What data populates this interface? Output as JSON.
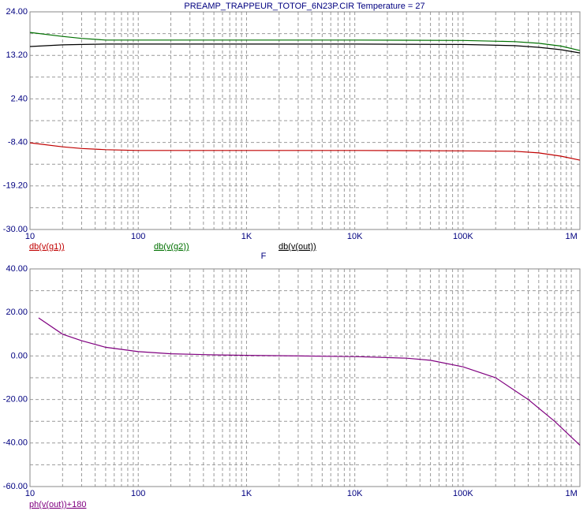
{
  "chart_data": [
    {
      "type": "line",
      "title": "PREAMP_TRAPPEUR_TOTOF_6N23P.CIR Temperature = 27",
      "xlabel": "F",
      "xscale": "log",
      "grid": true,
      "x": [
        10,
        20,
        30,
        50,
        100,
        1000,
        10000,
        100000,
        300000,
        500000,
        800000,
        1200000
      ],
      "series": [
        {
          "name": "db(v(g1))",
          "color": "#c00000",
          "values": [
            -8.5,
            -9.5,
            -9.9,
            -10.2,
            -10.4,
            -10.4,
            -10.4,
            -10.5,
            -10.6,
            -11.0,
            -11.8,
            -12.8
          ]
        },
        {
          "name": "db(v(g2))",
          "color": "#007000",
          "values": [
            18.9,
            17.9,
            17.4,
            17.0,
            17.0,
            17.0,
            17.0,
            16.9,
            16.6,
            16.2,
            15.5,
            14.4
          ]
        },
        {
          "name": "db(v(out))",
          "color": "#000000",
          "values": [
            15.4,
            15.8,
            15.9,
            16.0,
            16.0,
            16.0,
            16.0,
            15.9,
            15.6,
            15.2,
            14.6,
            13.8
          ]
        }
      ],
      "xlim": [
        10,
        1200000
      ],
      "xticks": [
        10,
        100,
        {
          "value": 1000,
          "label": "1K"
        },
        {
          "value": 10000,
          "label": "10K"
        },
        {
          "value": 100000,
          "label": "100K"
        },
        {
          "value": 1000000,
          "label": "1M"
        }
      ],
      "ylim": [
        -30,
        24
      ],
      "yticks": [
        {
          "value": 24,
          "label": "24.00"
        },
        {
          "value": 13.2,
          "label": "13.20"
        },
        {
          "value": 2.4,
          "label": "2.40"
        },
        {
          "value": -8.4,
          "label": "-8.40"
        },
        {
          "value": -19.2,
          "label": "-19.20"
        },
        {
          "value": -30,
          "label": "-30.00"
        }
      ]
    },
    {
      "type": "line",
      "xscale": "log",
      "grid": true,
      "x": [
        12,
        20,
        30,
        50,
        100,
        200,
        500,
        1000,
        10000,
        30000,
        50000,
        100000,
        200000,
        400000,
        700000,
        1200000
      ],
      "series": [
        {
          "name": "ph(v(out))+180",
          "color": "#800080",
          "values": [
            17.5,
            10,
            7,
            4,
            2,
            1,
            0.5,
            0.3,
            -0.3,
            -1,
            -2,
            -5,
            -10,
            -20,
            -30,
            -41
          ]
        }
      ],
      "xlim": [
        10,
        1200000
      ],
      "xticks": [
        10,
        100,
        {
          "value": 1000,
          "label": "1K"
        },
        {
          "value": 10000,
          "label": "10K"
        },
        {
          "value": 100000,
          "label": "100K"
        },
        {
          "value": 1000000,
          "label": "1M"
        }
      ],
      "ylim": [
        -60,
        40
      ],
      "yticks": [
        {
          "value": 40,
          "label": "40.00"
        },
        {
          "value": 20,
          "label": "20.00"
        },
        {
          "value": 0,
          "label": "0.00"
        },
        {
          "value": -20,
          "label": "-20.00"
        },
        {
          "value": -40,
          "label": "-40.00"
        },
        {
          "value": -60,
          "label": "-60.00"
        }
      ]
    }
  ]
}
